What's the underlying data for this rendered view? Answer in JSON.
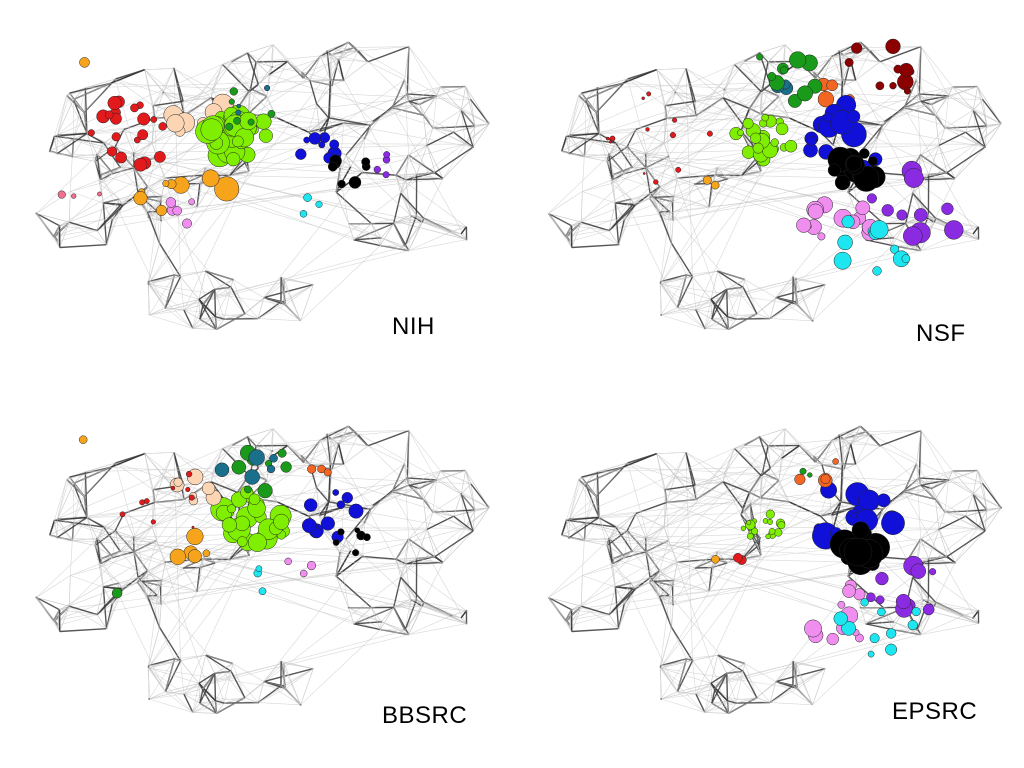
{
  "panels": [
    {
      "id": "nih",
      "label": "NIH"
    },
    {
      "id": "nsf",
      "label": "NSF"
    },
    {
      "id": "bbsrc",
      "label": "BBSRC"
    },
    {
      "id": "epsrc",
      "label": "EPSRC"
    }
  ],
  "colors": {
    "edge_light": "#c8c8c8",
    "edge_dark": "#3a3a3a",
    "red": "#e31a1c",
    "orange": "#f7a41d",
    "peach": "#fcd5b5",
    "lime": "#80ee00",
    "green": "#1a9a1a",
    "teal": "#1a6f8a",
    "blue": "#1010d8",
    "black": "#000000",
    "violet": "#8a2be2",
    "pink": "#f08ef0",
    "cyan": "#1ee6f0",
    "maroon": "#8b0000",
    "dark_orange": "#f26522",
    "rose": "#f07090"
  }
}
